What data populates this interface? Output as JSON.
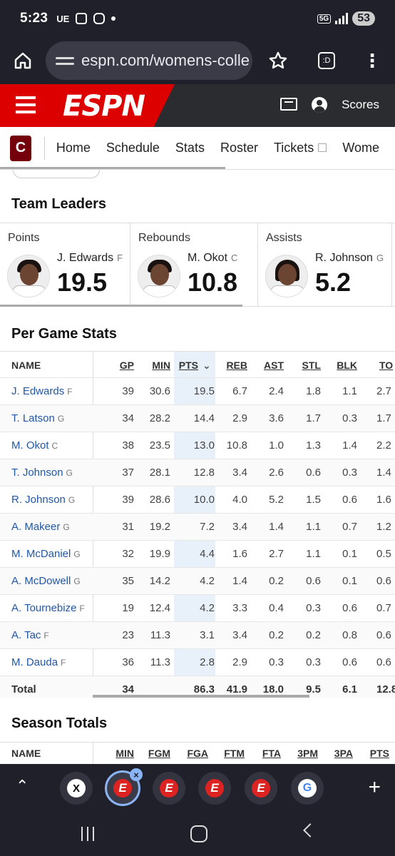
{
  "status_bar": {
    "time": "5:23",
    "carrier": "UE",
    "network": "5G",
    "battery": "53"
  },
  "browser": {
    "url": "espn.com/womens-colle"
  },
  "espn_header": {
    "logo": "ESPN",
    "scores_label": "Scores"
  },
  "team_nav": {
    "team_logo": "C",
    "items": [
      {
        "label": "Home"
      },
      {
        "label": "Schedule"
      },
      {
        "label": "Stats",
        "active": true
      },
      {
        "label": "Roster"
      },
      {
        "label": "Tickets"
      },
      {
        "label": "Wome"
      }
    ]
  },
  "team_leaders": {
    "title": "Team Leaders",
    "leaders": [
      {
        "category": "Points",
        "name": "J. Edwards",
        "pos": "F",
        "value": "19.5"
      },
      {
        "category": "Rebounds",
        "name": "M. Okot",
        "pos": "C",
        "value": "10.8"
      },
      {
        "category": "Assists",
        "name": "R. Johnson",
        "pos": "G",
        "value": "5.2"
      }
    ]
  },
  "per_game": {
    "title": "Per Game Stats",
    "headers": {
      "name": "NAME",
      "gp": "GP",
      "min": "MIN",
      "pts": "PTS",
      "reb": "REB",
      "ast": "AST",
      "stl": "STL",
      "blk": "BLK",
      "to": "TO"
    },
    "rows": [
      {
        "name": "J. Edwards",
        "pos": "F",
        "gp": "39",
        "min": "30.6",
        "pts": "19.5",
        "reb": "6.7",
        "ast": "2.4",
        "stl": "1.8",
        "blk": "1.1",
        "to": "2.7"
      },
      {
        "name": "T. Latson",
        "pos": "G",
        "gp": "34",
        "min": "28.2",
        "pts": "14.4",
        "reb": "2.9",
        "ast": "3.6",
        "stl": "1.7",
        "blk": "0.3",
        "to": "1.7"
      },
      {
        "name": "M. Okot",
        "pos": "C",
        "gp": "38",
        "min": "23.5",
        "pts": "13.0",
        "reb": "10.8",
        "ast": "1.0",
        "stl": "1.3",
        "blk": "1.4",
        "to": "2.2"
      },
      {
        "name": "T. Johnson",
        "pos": "G",
        "gp": "37",
        "min": "28.1",
        "pts": "12.8",
        "reb": "3.4",
        "ast": "2.6",
        "stl": "0.6",
        "blk": "0.3",
        "to": "1.4"
      },
      {
        "name": "R. Johnson",
        "pos": "G",
        "gp": "39",
        "min": "28.6",
        "pts": "10.0",
        "reb": "4.0",
        "ast": "5.2",
        "stl": "1.5",
        "blk": "0.6",
        "to": "1.6"
      },
      {
        "name": "A. Makeer",
        "pos": "G",
        "gp": "31",
        "min": "19.2",
        "pts": "7.2",
        "reb": "3.4",
        "ast": "1.4",
        "stl": "1.1",
        "blk": "0.7",
        "to": "1.2"
      },
      {
        "name": "M. McDaniel",
        "pos": "G",
        "gp": "32",
        "min": "19.9",
        "pts": "4.4",
        "reb": "1.6",
        "ast": "2.7",
        "stl": "1.1",
        "blk": "0.1",
        "to": "0.5"
      },
      {
        "name": "A. McDowell",
        "pos": "G",
        "gp": "35",
        "min": "14.2",
        "pts": "4.2",
        "reb": "1.4",
        "ast": "0.2",
        "stl": "0.6",
        "blk": "0.1",
        "to": "0.6"
      },
      {
        "name": "A. Tournebize",
        "pos": "F",
        "gp": "19",
        "min": "12.4",
        "pts": "4.2",
        "reb": "3.3",
        "ast": "0.4",
        "stl": "0.3",
        "blk": "0.6",
        "to": "0.7"
      },
      {
        "name": "A. Tac",
        "pos": "F",
        "gp": "23",
        "min": "11.3",
        "pts": "3.1",
        "reb": "3.4",
        "ast": "0.2",
        "stl": "0.2",
        "blk": "0.8",
        "to": "0.6"
      },
      {
        "name": "M. Dauda",
        "pos": "F",
        "gp": "36",
        "min": "11.3",
        "pts": "2.8",
        "reb": "2.9",
        "ast": "0.3",
        "stl": "0.3",
        "blk": "0.6",
        "to": "0.6"
      }
    ],
    "total": {
      "name": "Total",
      "gp": "34",
      "min": "",
      "pts": "86.3",
      "reb": "41.9",
      "ast": "18.0",
      "stl": "9.5",
      "blk": "6.1",
      "to": "12.8"
    }
  },
  "season_totals": {
    "title": "Season Totals",
    "headers": {
      "name": "NAME",
      "min": "MIN",
      "fgm": "FGM",
      "fga": "FGA",
      "ftm": "FTM",
      "fta": "FTA",
      "3pm": "3PM",
      "3pa": "3PA",
      "pts": "PTS"
    }
  }
}
